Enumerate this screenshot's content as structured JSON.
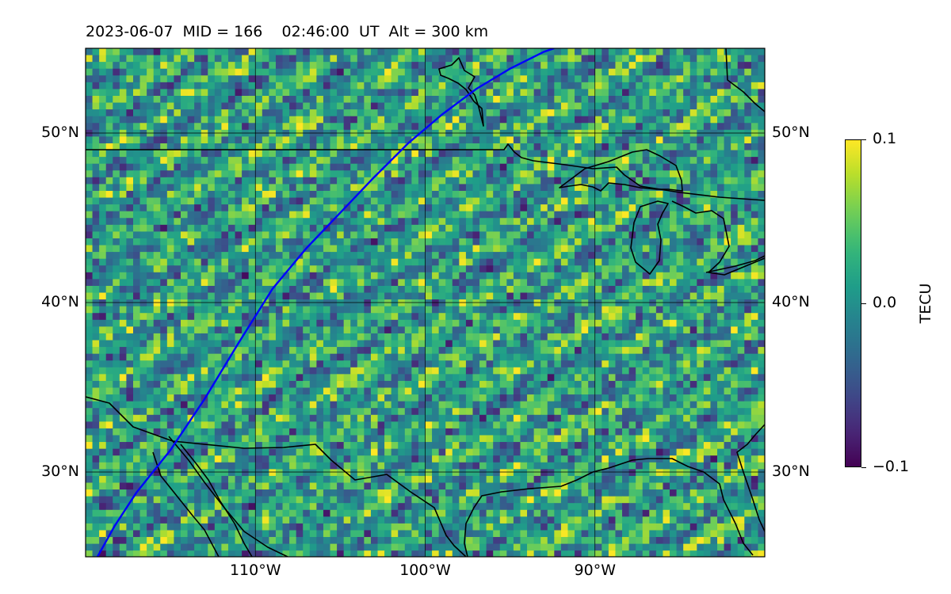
{
  "title": "2023-06-07  MID = 166    02:46:00  UT  Alt = 300 km",
  "map": {
    "lon_range": [
      -120,
      -80
    ],
    "lat_range": [
      25,
      55
    ],
    "lat_ticks": [
      {
        "value": 30,
        "label": "30°N"
      },
      {
        "value": 40,
        "label": "40°N"
      },
      {
        "value": 50,
        "label": "50°N"
      }
    ],
    "lon_ticks": [
      {
        "value": -110,
        "label": "110°W"
      },
      {
        "value": -100,
        "label": "100°W"
      },
      {
        "value": -90,
        "label": "90°W"
      }
    ],
    "gridlines": true,
    "satellite_track_color": "#0000ff",
    "satellite_track": [
      [
        -119.3,
        25
      ],
      [
        -118.3,
        26.8
      ],
      [
        -117,
        28.8
      ],
      [
        -115,
        31.3
      ],
      [
        -113,
        34.3
      ],
      [
        -111,
        37.6
      ],
      [
        -109,
        40.8
      ],
      [
        -107,
        43.2
      ],
      [
        -105,
        45.3
      ],
      [
        -103,
        47.4
      ],
      [
        -101,
        49.4
      ],
      [
        -99,
        51.1
      ],
      [
        -97,
        52.6
      ],
      [
        -95,
        53.8
      ],
      [
        -93,
        54.8
      ],
      [
        -92.4,
        55
      ]
    ]
  },
  "colorbar": {
    "colormap": "viridis",
    "min": -0.1,
    "max": 0.1,
    "ticks": [
      {
        "value": 0.1,
        "label": "0.1"
      },
      {
        "value": 0.0,
        "label": "0.0"
      },
      {
        "value": -0.1,
        "label": "−0.1"
      }
    ],
    "label": "TECU"
  }
}
